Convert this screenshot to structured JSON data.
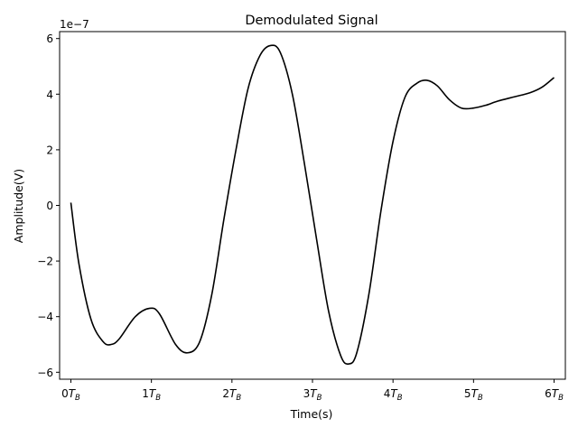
{
  "chart_data": {
    "type": "line",
    "title": "Demodulated Signal",
    "xlabel": "Time(s)",
    "ylabel": "Amplitude(V)",
    "y_offset_label": "1e−7",
    "y_scale_factor": 1e-07,
    "grid": false,
    "legend": "none",
    "line_color": "#000000",
    "xlim": [
      -0.14,
      6.14
    ],
    "ylim": [
      -6.25,
      6.25
    ],
    "x_ticks": [
      {
        "value": 0,
        "label": "0",
        "sub": "B"
      },
      {
        "value": 1,
        "label": "1",
        "sub": "B"
      },
      {
        "value": 2,
        "label": "2",
        "sub": "B"
      },
      {
        "value": 3,
        "label": "3",
        "sub": "B"
      },
      {
        "value": 4,
        "label": "4",
        "sub": "B"
      },
      {
        "value": 5,
        "label": "5",
        "sub": "B"
      },
      {
        "value": 6,
        "label": "6",
        "sub": "B"
      }
    ],
    "x_tick_letter": "T",
    "y_ticks": [
      {
        "value": 6,
        "label": "6"
      },
      {
        "value": 4,
        "label": "4"
      },
      {
        "value": 2,
        "label": "2"
      },
      {
        "value": 0,
        "label": "0"
      },
      {
        "value": -2,
        "label": "−2"
      },
      {
        "value": -4,
        "label": "−4"
      },
      {
        "value": -6,
        "label": "−6"
      }
    ],
    "series": [
      {
        "x": [
          0,
          0.1,
          0.25,
          0.4,
          0.5,
          0.6,
          0.8,
          0.98,
          1.1,
          1.3,
          1.45,
          1.6,
          1.75,
          1.9,
          2.05,
          2.2,
          2.35,
          2.48,
          2.6,
          2.75,
          2.9,
          3.05,
          3.2,
          3.35,
          3.45,
          3.55,
          3.7,
          3.85,
          4.0,
          4.15,
          4.3,
          4.42,
          4.55,
          4.7,
          4.85,
          5.0,
          5.15,
          5.3,
          5.5,
          5.7,
          5.85,
          6.0
        ],
        "y": [
          0.1,
          -2.1,
          -4.1,
          -4.9,
          -5.0,
          -4.8,
          -4.0,
          -3.7,
          -3.9,
          -5.0,
          -5.3,
          -4.9,
          -3.2,
          -0.5,
          2.0,
          4.2,
          5.4,
          5.75,
          5.5,
          4.0,
          1.5,
          -1.2,
          -3.8,
          -5.4,
          -5.7,
          -5.3,
          -3.2,
          -0.2,
          2.3,
          3.9,
          4.4,
          4.5,
          4.3,
          3.8,
          3.5,
          3.5,
          3.6,
          3.75,
          3.9,
          4.05,
          4.25,
          4.6
        ]
      }
    ]
  }
}
